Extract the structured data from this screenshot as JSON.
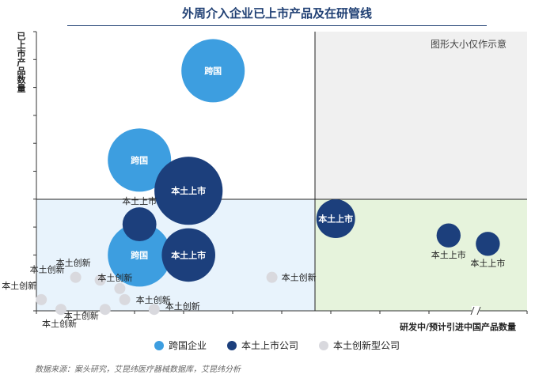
{
  "title": "外周介入企业已上市产品及在研管线",
  "note": "图形大小仅作示意",
  "source": "数据来源：案头研究，艾昆纬医疗器械数据库，艾昆纬分析",
  "colors": {
    "multinational": "#3d9ee0",
    "domestic_listed": "#1c3f7c",
    "domestic_innovative": "#d9d9de",
    "quad_top_right": "#f0f0f0",
    "quad_bottom_left": "#e8f3fc",
    "quad_bottom_right": "#e6f3dc"
  },
  "chart_data": {
    "type": "bubble",
    "xlabel": "研发中/预计引进中国产品数量",
    "ylabel": "已上市产品数量",
    "x_axis_break": true,
    "legend": [
      {
        "key": "multinational",
        "label": "跨国企业"
      },
      {
        "key": "domestic_listed",
        "label": "本土上市公司"
      },
      {
        "key": "domestic_innovative",
        "label": "本土创新型公司"
      }
    ],
    "points": [
      {
        "category": "multinational",
        "label": "跨国",
        "x": 3.6,
        "y": 8.6,
        "size": 10
      },
      {
        "category": "multinational",
        "label": "跨国",
        "x": 2.1,
        "y": 5.4,
        "size": 10
      },
      {
        "category": "multinational",
        "label": "跨国",
        "x": 2.1,
        "y": 2.0,
        "size": 10
      },
      {
        "category": "domestic_listed",
        "label": "本土上市",
        "x": 3.1,
        "y": 4.3,
        "size": 11
      },
      {
        "category": "domestic_listed",
        "label": "本土上市",
        "x": 2.1,
        "y": 3.1,
        "size": 4
      },
      {
        "category": "domestic_listed",
        "label": "本土上市",
        "x": 3.1,
        "y": 2.0,
        "size": 8
      },
      {
        "category": "domestic_listed",
        "label": "本土上市",
        "x": 6.1,
        "y": 3.3,
        "size": 5
      },
      {
        "category": "domestic_listed",
        "label": "本土上市",
        "x": 8.4,
        "y": 2.7,
        "size": 2
      },
      {
        "category": "domestic_listed",
        "label": "本土上市",
        "x": 9.2,
        "y": 2.4,
        "size": 2
      },
      {
        "category": "domestic_innovative",
        "label": "本土创新",
        "x": 0.1,
        "y": 0.4,
        "size": 1
      },
      {
        "category": "domestic_innovative",
        "label": "本土创新",
        "x": 0.5,
        "y": 0.05,
        "size": 1
      },
      {
        "category": "domestic_innovative",
        "label": "本土创新",
        "x": 1.3,
        "y": 1.1,
        "size": 1
      },
      {
        "category": "domestic_innovative",
        "label": "本土创新",
        "x": 0.8,
        "y": 1.2,
        "size": 1
      },
      {
        "category": "domestic_innovative",
        "label": "本土创新",
        "x": 1.7,
        "y": 0.8,
        "size": 1
      },
      {
        "category": "domestic_innovative",
        "label": "本土创新",
        "x": 1.8,
        "y": 0.4,
        "size": 1
      },
      {
        "category": "domestic_innovative",
        "label": "本土创新",
        "x": 1.4,
        "y": 0.05,
        "size": 1
      },
      {
        "category": "domestic_innovative",
        "label": "本土创新",
        "x": 2.4,
        "y": 0.05,
        "size": 1
      },
      {
        "category": "domestic_innovative",
        "label": "本土创新",
        "x": 4.8,
        "y": 1.2,
        "size": 1
      }
    ]
  }
}
